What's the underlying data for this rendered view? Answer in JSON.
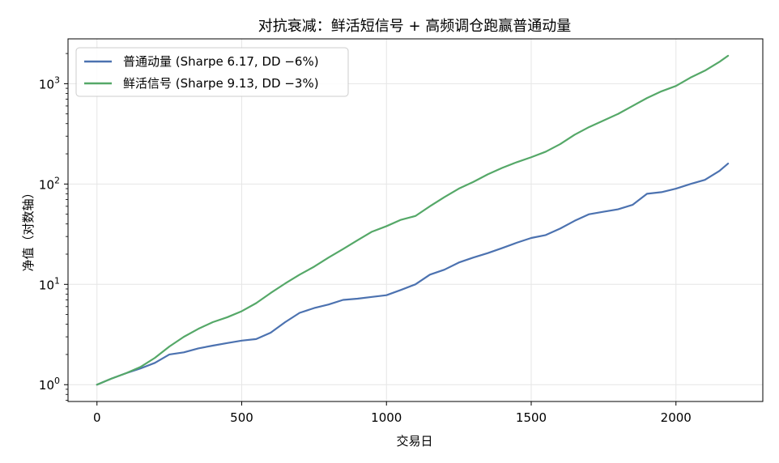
{
  "chart_data": {
    "type": "line",
    "title": "对抗衰减：鲜活短信号 + 高频调仓跑赢普通动量",
    "xlabel": "交易日",
    "ylabel": "净值（对数轴）",
    "xlim": [
      -100,
      2300
    ],
    "ylim": [
      0.68,
      2800
    ],
    "yscale": "log",
    "grid": true,
    "legend_position": "top-left",
    "x_ticks": [
      0,
      500,
      1000,
      1500,
      2000
    ],
    "x_tick_labels": [
      "0",
      "500",
      "1000",
      "1500",
      "2000"
    ],
    "y_ticks": [
      1,
      10,
      100,
      1000
    ],
    "y_tick_labels": [
      {
        "base": "10",
        "exp": "0"
      },
      {
        "base": "10",
        "exp": "1"
      },
      {
        "base": "10",
        "exp": "2"
      },
      {
        "base": "10",
        "exp": "3"
      }
    ],
    "series": [
      {
        "name": "普通动量 (Sharpe 6.17, DD −6%)",
        "color": "#4c72b0",
        "x": [
          0,
          50,
          100,
          150,
          200,
          250,
          300,
          350,
          400,
          450,
          500,
          550,
          600,
          650,
          700,
          750,
          800,
          850,
          900,
          950,
          1000,
          1050,
          1100,
          1150,
          1200,
          1250,
          1300,
          1350,
          1400,
          1450,
          1500,
          1550,
          1600,
          1650,
          1700,
          1750,
          1800,
          1850,
          1900,
          1950,
          2000,
          2050,
          2100,
          2150,
          2180
        ],
        "values": [
          1.0,
          1.15,
          1.3,
          1.45,
          1.65,
          2.0,
          2.1,
          2.3,
          2.45,
          2.6,
          2.75,
          2.85,
          3.3,
          4.2,
          5.2,
          5.8,
          6.3,
          7.0,
          7.2,
          7.5,
          7.8,
          8.8,
          10.0,
          12.5,
          14.0,
          16.5,
          18.5,
          20.5,
          23.0,
          26.0,
          29.0,
          31.0,
          36.0,
          43.0,
          50.0,
          53.0,
          56.0,
          62.0,
          80.0,
          83.0,
          90.0,
          100.0,
          110.0,
          135.0,
          160.0
        ]
      },
      {
        "name": "鲜活信号 (Sharpe 9.13, DD −3%)",
        "color": "#55a868",
        "x": [
          0,
          50,
          100,
          150,
          200,
          250,
          300,
          350,
          400,
          450,
          500,
          550,
          600,
          650,
          700,
          750,
          800,
          850,
          900,
          950,
          1000,
          1050,
          1100,
          1150,
          1200,
          1250,
          1300,
          1350,
          1400,
          1450,
          1500,
          1550,
          1600,
          1650,
          1700,
          1750,
          1800,
          1850,
          1900,
          1950,
          2000,
          2050,
          2100,
          2150,
          2180
        ],
        "values": [
          1.0,
          1.15,
          1.3,
          1.5,
          1.85,
          2.4,
          3.0,
          3.6,
          4.2,
          4.7,
          5.4,
          6.5,
          8.2,
          10.2,
          12.5,
          15.0,
          18.5,
          22.5,
          27.5,
          33.5,
          38.0,
          44.0,
          48.0,
          60.0,
          74.0,
          90.0,
          105.0,
          125.0,
          145.0,
          165.0,
          185.0,
          210.0,
          250.0,
          310.0,
          370.0,
          430.0,
          500.0,
          600.0,
          720.0,
          840.0,
          950.0,
          1150.0,
          1350.0,
          1650.0,
          1900.0
        ]
      }
    ]
  }
}
